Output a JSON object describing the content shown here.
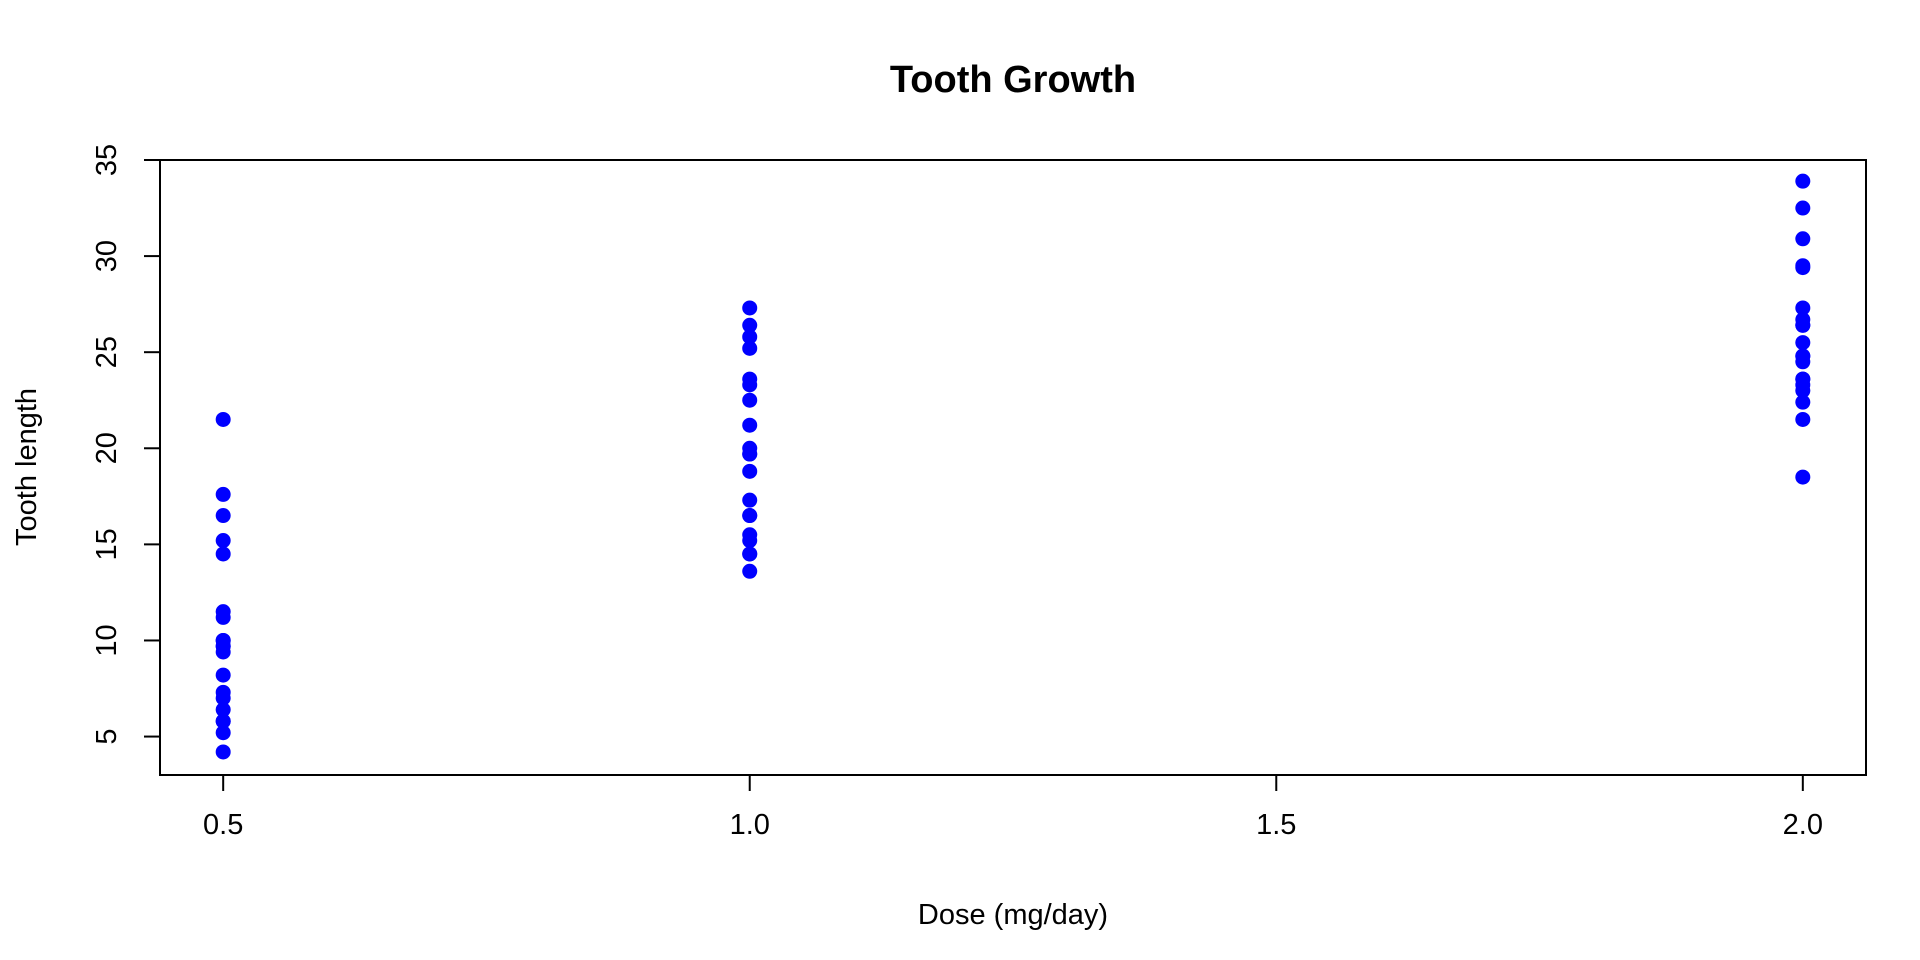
{
  "chart_data": {
    "type": "scatter",
    "title": "Tooth Growth",
    "xlabel": "Dose (mg/day)",
    "ylabel": "Tooth length",
    "xlim": [
      0.44,
      2.06
    ],
    "ylim": [
      3.0,
      35.0
    ],
    "x_ticks": [
      0.5,
      1.0,
      1.5,
      2.0
    ],
    "x_tick_labels": [
      "0.5",
      "1.0",
      "1.5",
      "2.0"
    ],
    "y_ticks": [
      5,
      10,
      15,
      20,
      25,
      30,
      35
    ],
    "y_tick_labels": [
      "5",
      "10",
      "15",
      "20",
      "25",
      "30",
      "35"
    ],
    "grid": false,
    "point_color": "#0000ff",
    "series": [
      {
        "x": [
          0.5,
          0.5,
          0.5,
          0.5,
          0.5,
          0.5,
          0.5,
          0.5,
          0.5,
          0.5,
          0.5,
          0.5,
          0.5,
          0.5,
          0.5,
          0.5,
          0.5,
          0.5,
          0.5,
          0.5,
          1.0,
          1.0,
          1.0,
          1.0,
          1.0,
          1.0,
          1.0,
          1.0,
          1.0,
          1.0,
          1.0,
          1.0,
          1.0,
          1.0,
          1.0,
          1.0,
          1.0,
          1.0,
          1.0,
          1.0,
          2.0,
          2.0,
          2.0,
          2.0,
          2.0,
          2.0,
          2.0,
          2.0,
          2.0,
          2.0,
          2.0,
          2.0,
          2.0,
          2.0,
          2.0,
          2.0,
          2.0,
          2.0,
          2.0,
          2.0
        ],
        "y": [
          4.2,
          5.2,
          5.8,
          6.4,
          7.0,
          7.3,
          8.2,
          9.4,
          9.7,
          10.0,
          11.2,
          11.5,
          14.5,
          15.2,
          16.5,
          17.6,
          21.5,
          9.7,
          10.0,
          5.8,
          13.6,
          14.5,
          15.2,
          15.5,
          16.5,
          17.3,
          18.8,
          19.7,
          20.0,
          21.2,
          22.5,
          23.3,
          23.6,
          25.2,
          25.8,
          26.4,
          27.3,
          16.5,
          14.5,
          19.7,
          18.5,
          21.5,
          22.4,
          23.0,
          23.3,
          23.6,
          24.5,
          24.8,
          25.5,
          26.4,
          26.7,
          27.3,
          29.4,
          29.5,
          30.9,
          32.5,
          33.9,
          24.8,
          26.4,
          23.6
        ]
      }
    ]
  }
}
